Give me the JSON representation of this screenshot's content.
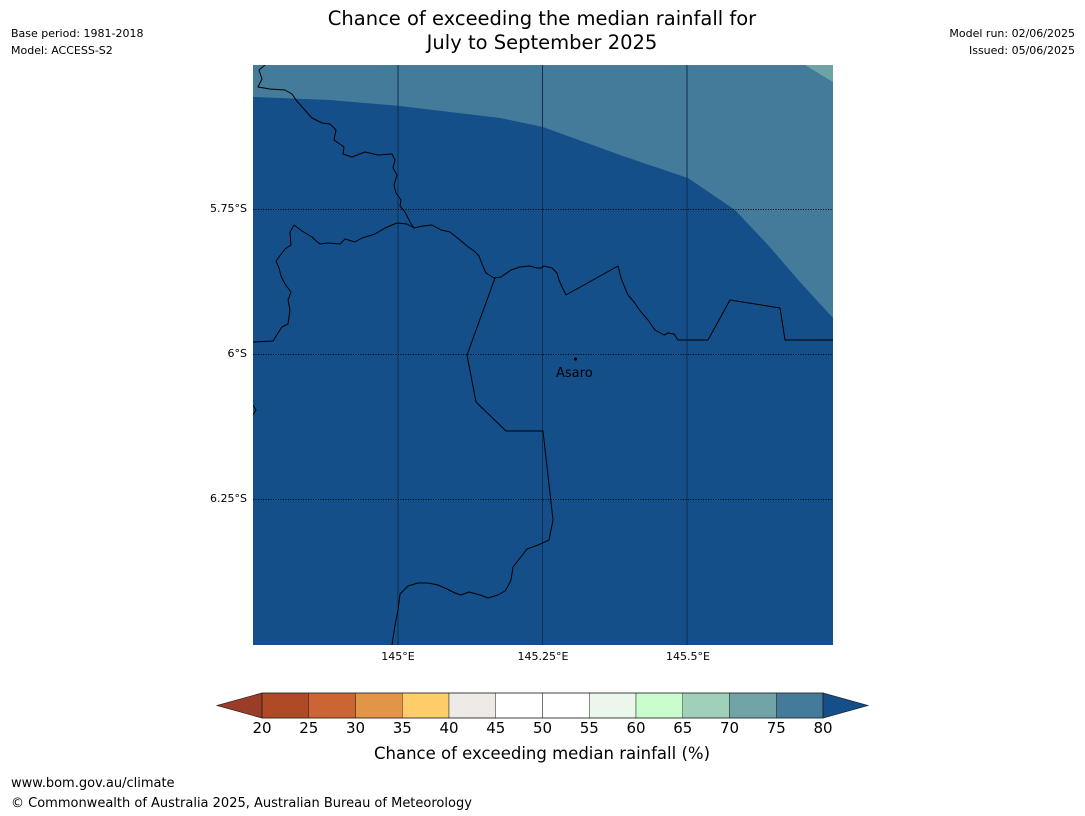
{
  "header": {
    "title_line1": "Chance of exceeding the median rainfall for",
    "title_line2": "July to September 2025",
    "base_period": "Base period: 1981-2018",
    "model": "Model: ACCESS-S2",
    "model_run": "Model run: 02/06/2025",
    "issued": "Issued: 05/06/2025"
  },
  "map": {
    "latitude_labels": [
      "5.75°S",
      "6°S",
      "6.25°S"
    ],
    "longitude_labels": [
      "145°E",
      "145.25°E",
      "145.5°E"
    ],
    "place": {
      "name": "Asaro"
    },
    "colors": {
      "above_80": "#144f8a",
      "band_75_80": "#447b9b",
      "band_70_75": "#6fa3a6"
    }
  },
  "colorbar": {
    "label": "Chance of exceeding median rainfall (%)",
    "ticks": [
      "20",
      "25",
      "30",
      "35",
      "40",
      "45",
      "50",
      "55",
      "60",
      "65",
      "70",
      "75",
      "80"
    ],
    "colors": {
      "below": "#9b3d26",
      "bands": [
        "#b04a26",
        "#cd6433",
        "#e39547",
        "#fecd6a",
        "#eeeae6",
        "#ffffff",
        "#ffffff",
        "#eaf7ea",
        "#c8fccc",
        "#9ed0ba",
        "#70a4a7",
        "#447b9b"
      ],
      "above": "#144f8a"
    }
  },
  "footer": {
    "url": "www.bom.gov.au/climate",
    "copyright": "© Commonwealth of Australia 2025, Australian Bureau of Meteorology"
  }
}
